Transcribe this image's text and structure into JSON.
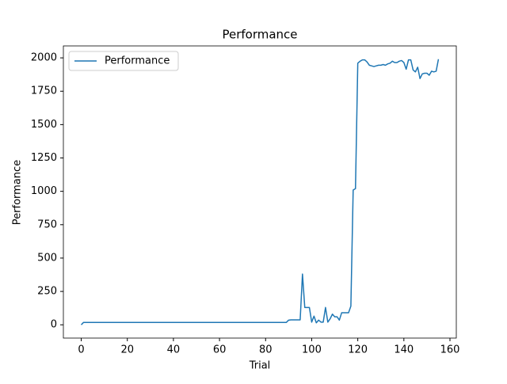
{
  "chart_data": {
    "type": "line",
    "title": "Performance",
    "xlabel": "Trial",
    "ylabel": "Performance",
    "x": [
      0,
      1,
      2,
      3,
      4,
      5,
      6,
      7,
      8,
      9,
      10,
      11,
      12,
      13,
      14,
      15,
      16,
      17,
      18,
      19,
      20,
      21,
      22,
      23,
      24,
      25,
      26,
      27,
      28,
      29,
      30,
      31,
      32,
      33,
      34,
      35,
      36,
      37,
      38,
      39,
      40,
      41,
      42,
      43,
      44,
      45,
      46,
      47,
      48,
      49,
      50,
      51,
      52,
      53,
      54,
      55,
      56,
      57,
      58,
      59,
      60,
      61,
      62,
      63,
      64,
      65,
      66,
      67,
      68,
      69,
      70,
      71,
      72,
      73,
      74,
      75,
      76,
      77,
      78,
      79,
      80,
      81,
      82,
      83,
      84,
      85,
      86,
      87,
      88,
      89,
      90,
      91,
      92,
      93,
      94,
      95,
      96,
      97,
      98,
      99,
      100,
      101,
      102,
      103,
      104,
      105,
      106,
      107,
      108,
      109,
      110,
      111,
      112,
      113,
      114,
      115,
      116,
      117,
      118,
      119,
      120,
      121,
      122,
      123,
      124,
      125,
      126,
      127,
      128,
      129,
      130,
      131,
      132,
      133,
      134,
      135,
      136,
      137,
      138,
      139,
      140,
      141,
      142,
      143,
      144,
      145,
      146,
      147,
      148,
      149,
      150,
      151,
      152,
      153,
      154,
      155
    ],
    "series": [
      {
        "name": "Performance",
        "color": "#1f77b4",
        "values": [
          0,
          18,
          18,
          18,
          18,
          18,
          18,
          18,
          18,
          18,
          18,
          18,
          18,
          18,
          18,
          18,
          18,
          18,
          18,
          18,
          18,
          18,
          18,
          18,
          18,
          18,
          18,
          18,
          18,
          18,
          18,
          18,
          18,
          18,
          18,
          18,
          18,
          18,
          18,
          18,
          18,
          18,
          18,
          18,
          18,
          18,
          18,
          18,
          18,
          18,
          18,
          18,
          18,
          18,
          18,
          18,
          18,
          18,
          18,
          18,
          18,
          18,
          18,
          18,
          18,
          18,
          18,
          18,
          18,
          18,
          18,
          18,
          18,
          18,
          18,
          18,
          18,
          18,
          18,
          18,
          18,
          18,
          18,
          18,
          18,
          18,
          18,
          18,
          18,
          18,
          35,
          37,
          37,
          37,
          37,
          37,
          380,
          130,
          130,
          130,
          20,
          65,
          15,
          35,
          20,
          20,
          130,
          20,
          45,
          80,
          60,
          60,
          35,
          90,
          90,
          90,
          90,
          140,
          1010,
          1020,
          1960,
          1975,
          1985,
          1985,
          1970,
          1945,
          1940,
          1935,
          1940,
          1945,
          1945,
          1950,
          1945,
          1955,
          1960,
          1975,
          1965,
          1965,
          1975,
          1980,
          1965,
          1915,
          1985,
          1985,
          1910,
          1895,
          1930,
          1845,
          1880,
          1885,
          1885,
          1870,
          1900,
          1895,
          1900,
          1990
        ]
      }
    ],
    "xlim": [
      -7.75,
      162.75
    ],
    "ylim": [
      -99.5,
      2089.5
    ],
    "xticks": [
      0,
      20,
      40,
      60,
      80,
      100,
      120,
      140,
      160
    ],
    "yticks": [
      0,
      250,
      500,
      750,
      1000,
      1250,
      1500,
      1750,
      2000
    ],
    "legend": "upper left"
  }
}
